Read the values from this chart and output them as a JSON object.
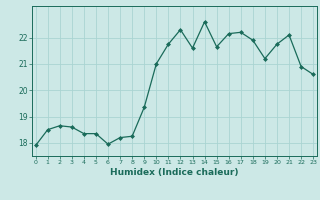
{
  "x": [
    0,
    1,
    2,
    3,
    4,
    5,
    6,
    7,
    8,
    9,
    10,
    11,
    12,
    13,
    14,
    15,
    16,
    17,
    18,
    19,
    20,
    21,
    22,
    23
  ],
  "y": [
    17.9,
    18.5,
    18.65,
    18.6,
    18.35,
    18.35,
    17.95,
    18.2,
    18.25,
    19.35,
    21.0,
    21.75,
    22.3,
    21.6,
    22.6,
    21.65,
    22.15,
    22.2,
    21.9,
    21.2,
    21.75,
    22.1,
    20.9,
    20.6
  ],
  "line_color": "#1a6b5a",
  "marker": "D",
  "marker_size": 2,
  "bg_color": "#cce8e6",
  "grid_color": "#aad4d2",
  "tick_color": "#1a6b5a",
  "xlabel": "Humidex (Indice chaleur)",
  "xlabel_color": "#1a6b5a",
  "ylim": [
    17.5,
    23.2
  ],
  "yticks": [
    18,
    19,
    20,
    21,
    22
  ],
  "xlim": [
    -0.3,
    23.3
  ]
}
